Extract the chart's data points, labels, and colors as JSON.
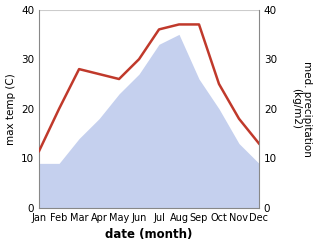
{
  "months": [
    "Jan",
    "Feb",
    "Mar",
    "Apr",
    "May",
    "Jun",
    "Jul",
    "Aug",
    "Sep",
    "Oct",
    "Nov",
    "Dec"
  ],
  "temperature": [
    9,
    9,
    14,
    18,
    23,
    27,
    33,
    35,
    26,
    20,
    13,
    9
  ],
  "precipitation": [
    11.5,
    20,
    28,
    27,
    26,
    30,
    36,
    37,
    37,
    25,
    18,
    13
  ],
  "precip_color": "#c0392b",
  "temp_fill_color": "#c5d0ee",
  "ylim": [
    0,
    40
  ],
  "yticks": [
    0,
    10,
    20,
    30,
    40
  ],
  "xlabel": "date (month)",
  "ylabel_left": "max temp (C)",
  "ylabel_right": "med. precipitation\n(kg/m2)",
  "bg_color": "#ffffff"
}
